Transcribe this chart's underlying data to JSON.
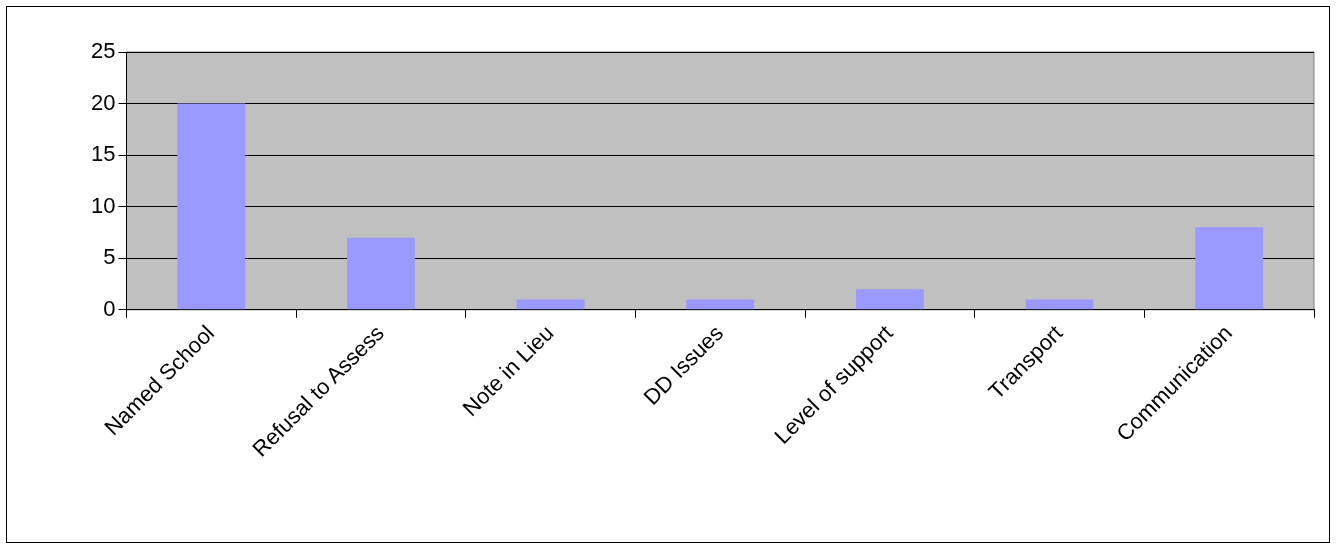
{
  "chart_data": {
    "type": "bar",
    "categories": [
      "Named School",
      "Refusal to Assess",
      "Note in Lieu",
      "DD Issues",
      "Level of support",
      "Transport",
      "Communication"
    ],
    "values": [
      20,
      7,
      1,
      1,
      2,
      1,
      8
    ],
    "color": "#9999ff",
    "ylim": [
      0,
      25
    ],
    "yticks": [
      0,
      5,
      10,
      15,
      20,
      25
    ],
    "grid": "y",
    "legend": false
  }
}
